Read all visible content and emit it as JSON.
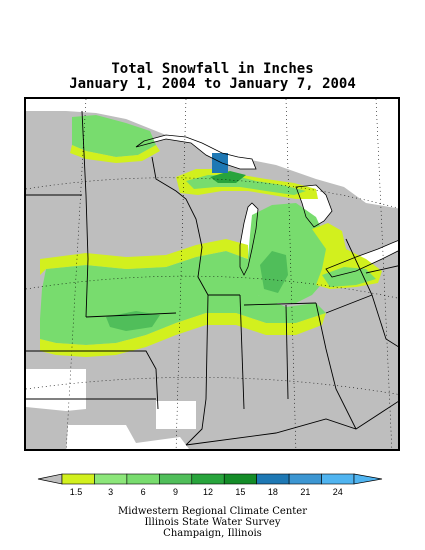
{
  "title_line1": "Total Snowfall in Inches",
  "title_line2": "January 1, 2004 to January 7, 2004",
  "legend": {
    "ticks": [
      "1.5",
      "3",
      "6",
      "9",
      "12",
      "15",
      "18",
      "21",
      "24"
    ],
    "colors": [
      "#d2f01e",
      "#8ce67a",
      "#78dc6e",
      "#50be5a",
      "#28a43c",
      "#148c28",
      "#1e78b4",
      "#3c96d2",
      "#50b4f0"
    ],
    "under_color": "#bebebe"
  },
  "colors": {
    "no_data": "#bebebe",
    "missing": "#ffffff"
  },
  "credits": {
    "line1": "Midwestern Regional Climate Center",
    "line2": "Illinois State Water Survey",
    "line3": "Champaign, Illinois"
  }
}
